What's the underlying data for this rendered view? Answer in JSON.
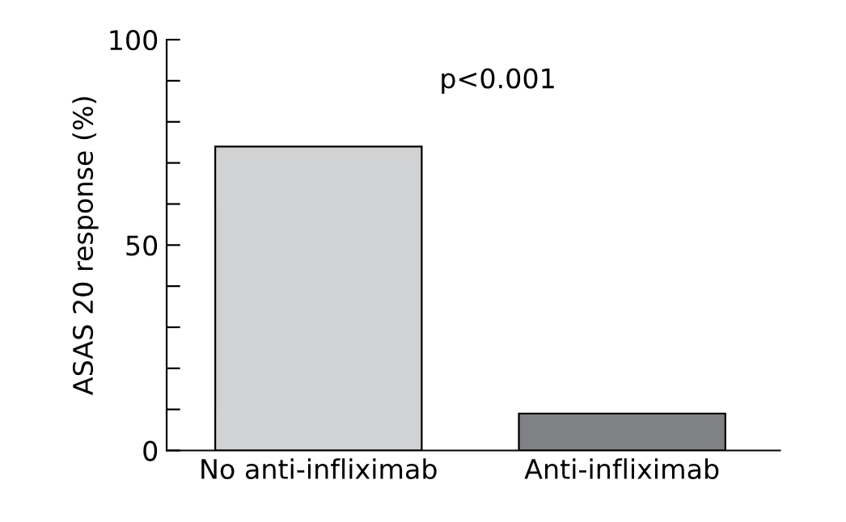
{
  "chart_data": {
    "type": "bar",
    "ylabel": "ASAS 20 response (%)",
    "categories": [
      "No anti-infliximab",
      "Anti-infliximab"
    ],
    "values": [
      74,
      9
    ],
    "colors": [
      "#d1d2d4",
      "#808184"
    ],
    "ylim": [
      0,
      100
    ],
    "yticks": [
      0,
      {
        "value": 10,
        "label": null
      },
      {
        "value": 20,
        "label": null
      },
      {
        "value": 30,
        "label": null
      },
      {
        "value": 40,
        "label": null
      },
      50,
      {
        "value": 60,
        "label": null
      },
      {
        "value": 70,
        "label": null
      },
      {
        "value": 80,
        "label": null
      },
      {
        "value": 90,
        "label": null
      },
      100
    ],
    "annotations": [
      "p<0.001"
    ],
    "grid": false,
    "legend": false
  }
}
